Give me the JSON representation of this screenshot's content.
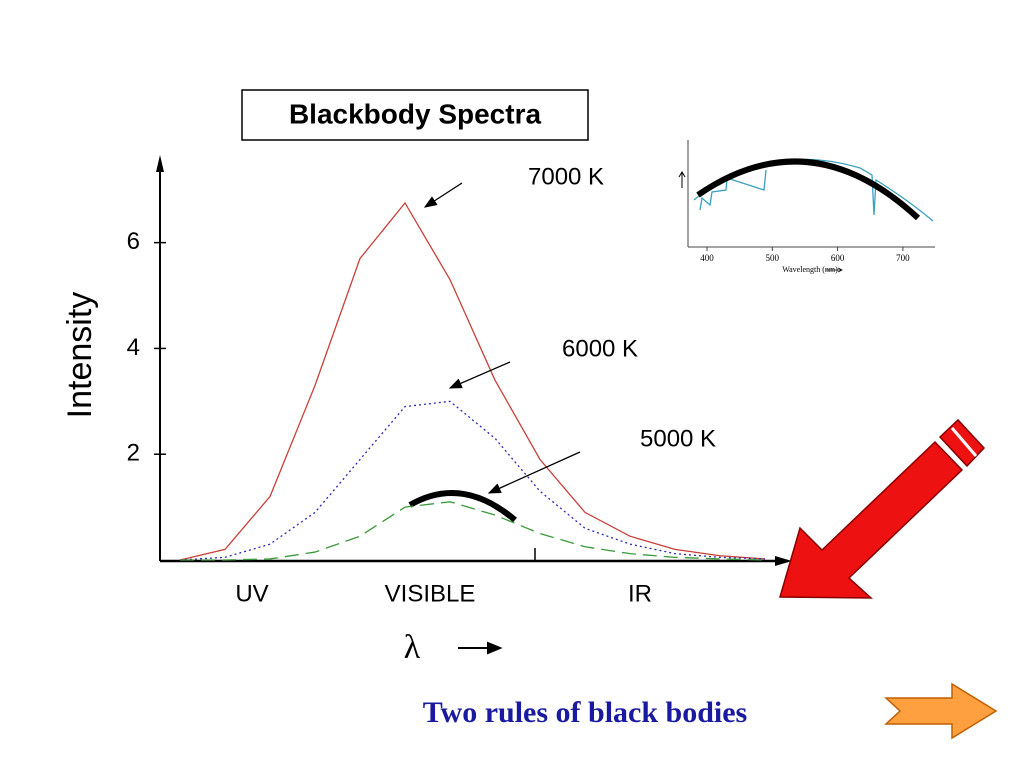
{
  "chart_data": {
    "type": "line",
    "title": "Blackbody Spectra",
    "ylabel": "Intensity",
    "xlabel": "λ",
    "categories": [
      null,
      null,
      null,
      null,
      null,
      null,
      null,
      null,
      null,
      null,
      null,
      null,
      null,
      null
    ],
    "regions": [
      "UV",
      "VISIBLE",
      "IR"
    ],
    "ylim": [
      0,
      7.6
    ],
    "yticks": [
      2,
      4,
      6
    ],
    "series": [
      {
        "name": "7000 K",
        "color": "#c8403a",
        "style": "solid",
        "values": [
          0,
          0.2,
          1.2,
          3.3,
          5.7,
          6.75,
          5.3,
          3.4,
          1.9,
          0.9,
          0.45,
          0.2,
          0.08,
          0.02
        ]
      },
      {
        "name": "6000 K",
        "color": "#2a2ab8",
        "style": "dotted",
        "values": [
          0,
          0.05,
          0.3,
          0.9,
          1.9,
          2.9,
          3.0,
          2.3,
          1.3,
          0.6,
          0.3,
          0.12,
          0.05,
          0.02
        ]
      },
      {
        "name": "5000 K",
        "color": "#3a9a3a",
        "style": "dashed",
        "values": [
          0,
          0,
          0.02,
          0.15,
          0.45,
          1.0,
          1.1,
          0.85,
          0.5,
          0.25,
          0.12,
          0.05,
          0.02,
          0
        ]
      }
    ]
  },
  "inset": {
    "xlabel": "Wavelength (nm)",
    "xticks": [
      400,
      500,
      600,
      700
    ]
  },
  "footer": {
    "text": "Two rules of black bodies"
  }
}
